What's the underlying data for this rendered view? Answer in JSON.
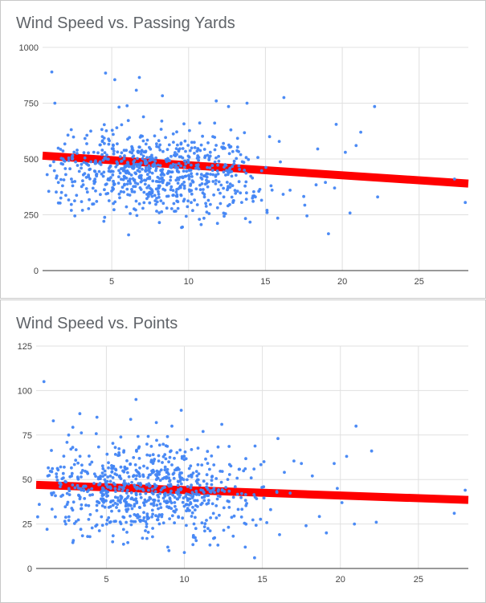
{
  "chart_data": [
    {
      "type": "scatter",
      "title": "Wind Speed vs. Passing Yards",
      "xlabel": "",
      "ylabel": "",
      "xlim": [
        0.5,
        28.2
      ],
      "ylim": [
        0,
        1000
      ],
      "x_ticks": [
        5,
        10,
        15,
        20,
        25
      ],
      "y_ticks": [
        0,
        250,
        500,
        750,
        1000
      ],
      "grid": true,
      "point_color": "#4285f4",
      "trendline": {
        "color": "#ff0000",
        "x": [
          0.5,
          28.2
        ],
        "y": [
          515,
          390
        ]
      },
      "points": [
        [
          1.1,
          890
        ],
        [
          4.6,
          885
        ],
        [
          5.2,
          855
        ],
        [
          6.8,
          865
        ],
        [
          6.6,
          808
        ],
        [
          8.3,
          783
        ],
        [
          11.8,
          760
        ],
        [
          16.2,
          775
        ],
        [
          22.1,
          735
        ],
        [
          1.3,
          750
        ],
        [
          12.6,
          735
        ],
        [
          13.8,
          750
        ],
        [
          19.6,
          655
        ],
        [
          21.2,
          620
        ],
        [
          20.9,
          560
        ],
        [
          20.2,
          530
        ],
        [
          18.4,
          545
        ],
        [
          22.3,
          330
        ],
        [
          28.0,
          305
        ],
        [
          27.3,
          410
        ],
        [
          19.1,
          165
        ],
        [
          20.5,
          258
        ],
        [
          17.7,
          245
        ],
        [
          15.8,
          235
        ],
        [
          15.1,
          270
        ],
        [
          6.1,
          160
        ],
        [
          9.6,
          195
        ],
        [
          8.1,
          215
        ],
        [
          1.8,
          380
        ],
        [
          0.8,
          430
        ],
        [
          1.0,
          470
        ],
        [
          0.9,
          355
        ],
        [
          2.6,
          245
        ],
        [
          3.1,
          270
        ],
        [
          10.7,
          230
        ],
        [
          12.4,
          255
        ],
        [
          14.2,
          310
        ],
        [
          16.6,
          360
        ],
        [
          18.9,
          395
        ],
        [
          19.5,
          370
        ]
      ],
      "scatter_cloud": {
        "count": 760,
        "x_center": 7.5,
        "x_spread": 3.6,
        "x_max": 20,
        "y_base": 480,
        "y_slope": -4.5,
        "y_spread": 95,
        "y_min": 160,
        "y_max": 880
      }
    },
    {
      "type": "scatter",
      "title": "Wind Speed vs. Points",
      "xlabel": "",
      "ylabel": "",
      "xlim": [
        0.5,
        28.2
      ],
      "ylim": [
        0,
        125
      ],
      "x_ticks": [
        5,
        10,
        15,
        20,
        25
      ],
      "y_ticks": [
        0,
        25,
        50,
        75,
        100,
        125
      ],
      "grid": true,
      "point_color": "#4285f4",
      "trendline": {
        "color": "#ff0000",
        "x": [
          0.5,
          28.2
        ],
        "y": [
          47,
          38.5
        ]
      },
      "points": [
        [
          1.0,
          105
        ],
        [
          6.9,
          95
        ],
        [
          1.6,
          83
        ],
        [
          3.3,
          87
        ],
        [
          4.4,
          85
        ],
        [
          21.0,
          80
        ],
        [
          12.4,
          81
        ],
        [
          16.0,
          73
        ],
        [
          22.0,
          66
        ],
        [
          20.4,
          63
        ],
        [
          19.6,
          59
        ],
        [
          17.5,
          59
        ],
        [
          20.9,
          25
        ],
        [
          22.3,
          26
        ],
        [
          27.3,
          31
        ],
        [
          28.0,
          44
        ],
        [
          14.5,
          6
        ],
        [
          10.0,
          9
        ],
        [
          16.1,
          19
        ],
        [
          17.8,
          24
        ],
        [
          19.1,
          20
        ],
        [
          0.6,
          29
        ],
        [
          0.7,
          36
        ],
        [
          1.2,
          22
        ],
        [
          2.4,
          25
        ],
        [
          8.2,
          82
        ],
        [
          9.2,
          80
        ],
        [
          11.2,
          77
        ],
        [
          15.1,
          60
        ],
        [
          18.2,
          52
        ],
        [
          19.8,
          45
        ],
        [
          20.1,
          37
        ],
        [
          13.9,
          12
        ],
        [
          5.4,
          15
        ],
        [
          3.8,
          18
        ]
      ],
      "scatter_cloud": {
        "count": 760,
        "x_center": 7.5,
        "x_spread": 3.6,
        "x_max": 20,
        "y_base": 46,
        "y_slope": -0.3,
        "y_spread": 13,
        "y_min": 8,
        "y_max": 95
      }
    }
  ]
}
